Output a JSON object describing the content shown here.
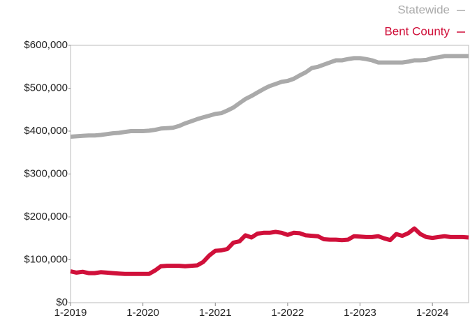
{
  "chart_data": {
    "type": "line",
    "categories": [
      "1-2019",
      null,
      null,
      null,
      null,
      null,
      null,
      null,
      null,
      null,
      null,
      null,
      "1-2020",
      null,
      null,
      null,
      null,
      null,
      null,
      null,
      null,
      null,
      null,
      null,
      "1-2021",
      null,
      null,
      null,
      null,
      null,
      null,
      null,
      null,
      null,
      null,
      null,
      "1-2022",
      null,
      null,
      null,
      null,
      null,
      null,
      null,
      null,
      null,
      null,
      null,
      "1-2023",
      null,
      null,
      null,
      null,
      null,
      null,
      null,
      null,
      null,
      null,
      null,
      "1-2024",
      null,
      null,
      null,
      null,
      null,
      null
    ],
    "series": [
      {
        "name": "Statewide",
        "color": "#aaaaaa",
        "values": [
          387000,
          388000,
          389000,
          390000,
          390000,
          391000,
          393000,
          395000,
          396000,
          398000,
          400000,
          400000,
          400000,
          401000,
          403000,
          406000,
          407000,
          408000,
          412000,
          418000,
          423000,
          428000,
          432000,
          436000,
          440000,
          442000,
          448000,
          455000,
          465000,
          475000,
          482000,
          490000,
          498000,
          505000,
          510000,
          515000,
          517000,
          522000,
          530000,
          537000,
          547000,
          550000,
          555000,
          560000,
          565000,
          565000,
          568000,
          570000,
          570000,
          568000,
          565000,
          560000,
          560000,
          560000,
          560000,
          560000,
          562000,
          565000,
          565000,
          566000,
          570000,
          572000,
          575000,
          575000,
          575000,
          575000,
          575000
        ]
      },
      {
        "name": "Bent County",
        "color": "#d0103a",
        "values": [
          73000,
          70000,
          72000,
          69000,
          69000,
          71000,
          70000,
          69000,
          68000,
          67000,
          67000,
          67000,
          67000,
          67000,
          75000,
          85000,
          86000,
          86000,
          86000,
          85000,
          86000,
          87000,
          95000,
          110000,
          121000,
          122000,
          125000,
          140000,
          143000,
          157000,
          152000,
          161000,
          163000,
          163000,
          165000,
          163000,
          158000,
          163000,
          162000,
          157000,
          156000,
          155000,
          148000,
          147000,
          147000,
          146000,
          147000,
          155000,
          154000,
          153000,
          153000,
          155000,
          150000,
          146000,
          160000,
          156000,
          162000,
          173000,
          160000,
          153000,
          151000,
          153000,
          155000,
          153000,
          153000,
          153000,
          152000
        ]
      }
    ],
    "ylim": [
      0,
      600000
    ],
    "yticks": [
      {
        "value": 0,
        "label": "$0"
      },
      {
        "value": 100000,
        "label": "$100,000"
      },
      {
        "value": 200000,
        "label": "$200,000"
      },
      {
        "value": 300000,
        "label": "$300,000"
      },
      {
        "value": 400000,
        "label": "$400,000"
      },
      {
        "value": 500000,
        "label": "$500,000"
      },
      {
        "value": 600000,
        "label": "$600,000"
      }
    ],
    "grid": false
  }
}
